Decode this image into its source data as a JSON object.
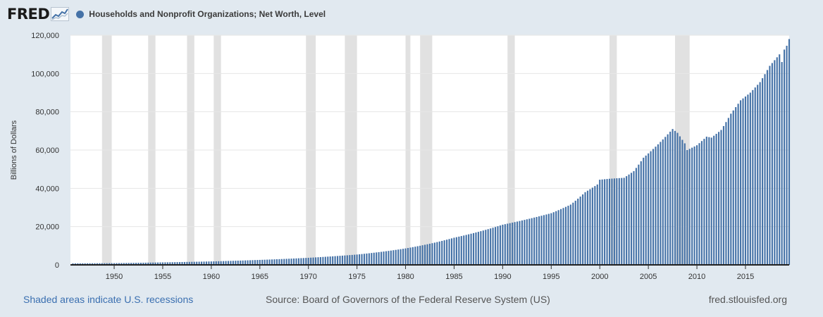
{
  "header": {
    "logo_text": "FRED",
    "logo_icon": "fred-graph-icon",
    "series_title": "Households and Nonprofit Organizations; Net Worth, Level",
    "series_color": "#4572a7"
  },
  "footer": {
    "recessions_note": "Shaded areas indicate U.S. recessions",
    "source": "Source: Board of Governors of the Federal Reserve System (US)",
    "site": "fred.stlouisfed.org"
  },
  "colors": {
    "background": "#e1e9f0",
    "plot_background": "#ffffff",
    "bar": "#4572a7",
    "recession": "#e1e1e1",
    "gridline": "#e6e6e6"
  },
  "chart_data": {
    "type": "bar",
    "title": "Households and Nonprofit Organizations; Net Worth, Level",
    "ylabel": "Billions of Dollars",
    "xlabel": "",
    "ylim": [
      0,
      120000
    ],
    "xlim": [
      1945.5,
      2019.5
    ],
    "yticks": [
      0,
      20000,
      40000,
      60000,
      80000,
      100000,
      120000
    ],
    "ytick_labels": [
      "0",
      "20,000",
      "40,000",
      "60,000",
      "80,000",
      "100,000",
      "120,000"
    ],
    "xticks": [
      1950,
      1955,
      1960,
      1965,
      1970,
      1975,
      1980,
      1985,
      1990,
      1995,
      2000,
      2005,
      2010,
      2015
    ],
    "grid": true,
    "frequency": "quarterly",
    "recessions": [
      [
        1948.75,
        1949.75
      ],
      [
        1953.5,
        1954.25
      ],
      [
        1957.5,
        1958.25
      ],
      [
        1960.25,
        1961.0
      ],
      [
        1969.75,
        1970.75
      ],
      [
        1973.75,
        1975.0
      ],
      [
        1980.0,
        1980.5
      ],
      [
        1981.5,
        1982.75
      ],
      [
        1990.5,
        1991.25
      ],
      [
        2001.0,
        2001.75
      ],
      [
        2007.75,
        2009.25
      ]
    ],
    "anchors": [
      [
        1945.75,
        780
      ],
      [
        1950.0,
        900
      ],
      [
        1955.0,
        1300
      ],
      [
        1960.0,
        1800
      ],
      [
        1965.0,
        2600
      ],
      [
        1970.0,
        3700
      ],
      [
        1975.0,
        5400
      ],
      [
        1980.0,
        8600
      ],
      [
        1985.0,
        14200
      ],
      [
        1990.0,
        21000
      ],
      [
        1995.0,
        27000
      ],
      [
        1997.0,
        31500
      ],
      [
        1998.5,
        38000
      ],
      [
        1999.75,
        42000
      ],
      [
        2000.0,
        44500
      ],
      [
        2001.0,
        45000
      ],
      [
        2002.5,
        45500
      ],
      [
        2003.5,
        49000
      ],
      [
        2004.5,
        56000
      ],
      [
        2006.0,
        63000
      ],
      [
        2007.5,
        71000
      ],
      [
        2008.0,
        69000
      ],
      [
        2008.75,
        63500
      ],
      [
        2009.0,
        60000
      ],
      [
        2010.0,
        62500
      ],
      [
        2011.0,
        67000
      ],
      [
        2011.5,
        66500
      ],
      [
        2012.5,
        70500
      ],
      [
        2013.5,
        79000
      ],
      [
        2014.5,
        86000
      ],
      [
        2015.5,
        90000
      ],
      [
        2016.5,
        95500
      ],
      [
        2017.5,
        104000
      ],
      [
        2018.5,
        110000
      ],
      [
        2018.75,
        106000
      ],
      [
        2019.0,
        112500
      ],
      [
        2019.25,
        114500
      ],
      [
        2019.5,
        118000
      ]
    ]
  }
}
